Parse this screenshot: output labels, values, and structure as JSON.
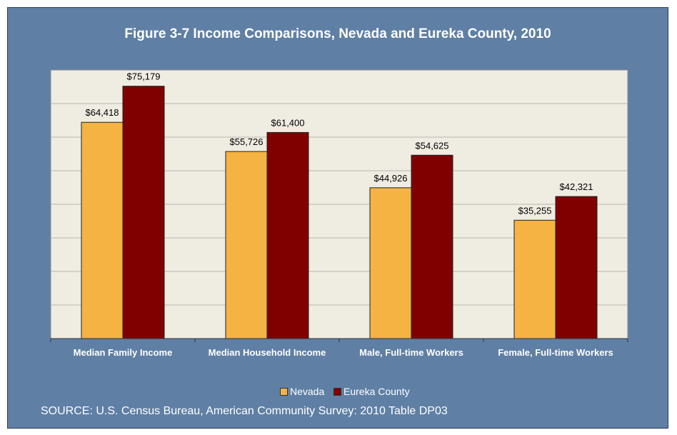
{
  "chart_data": {
    "type": "bar",
    "title": "Figure 3-7 Income Comparisons, Nevada and Eureka County, 2010",
    "categories": [
      "Median Family Income",
      "Median Household Income",
      "Male, Full-time Workers",
      "Female, Full-time Workers"
    ],
    "series": [
      {
        "name": "Nevada",
        "color": "#f4b342",
        "values": [
          64418,
          55726,
          44926,
          35255
        ],
        "labels": [
          "$64,418",
          "$55,726",
          "$44,926",
          "$35,255"
        ]
      },
      {
        "name": "Eureka County",
        "color": "#800000",
        "values": [
          75179,
          61400,
          54625,
          42321
        ],
        "labels": [
          "$75,179",
          "$61,400",
          "$54,625",
          "$42,321"
        ]
      }
    ],
    "ylim": [
      0,
      80000
    ],
    "y_grid_step": 10000,
    "grid": true,
    "legend": "bottom",
    "plot_background": "#efece2",
    "frame_background": "#5f7fa5"
  },
  "source": "SOURCE: U.S. Census Bureau, American Community Survey: 2010 Table DP03"
}
